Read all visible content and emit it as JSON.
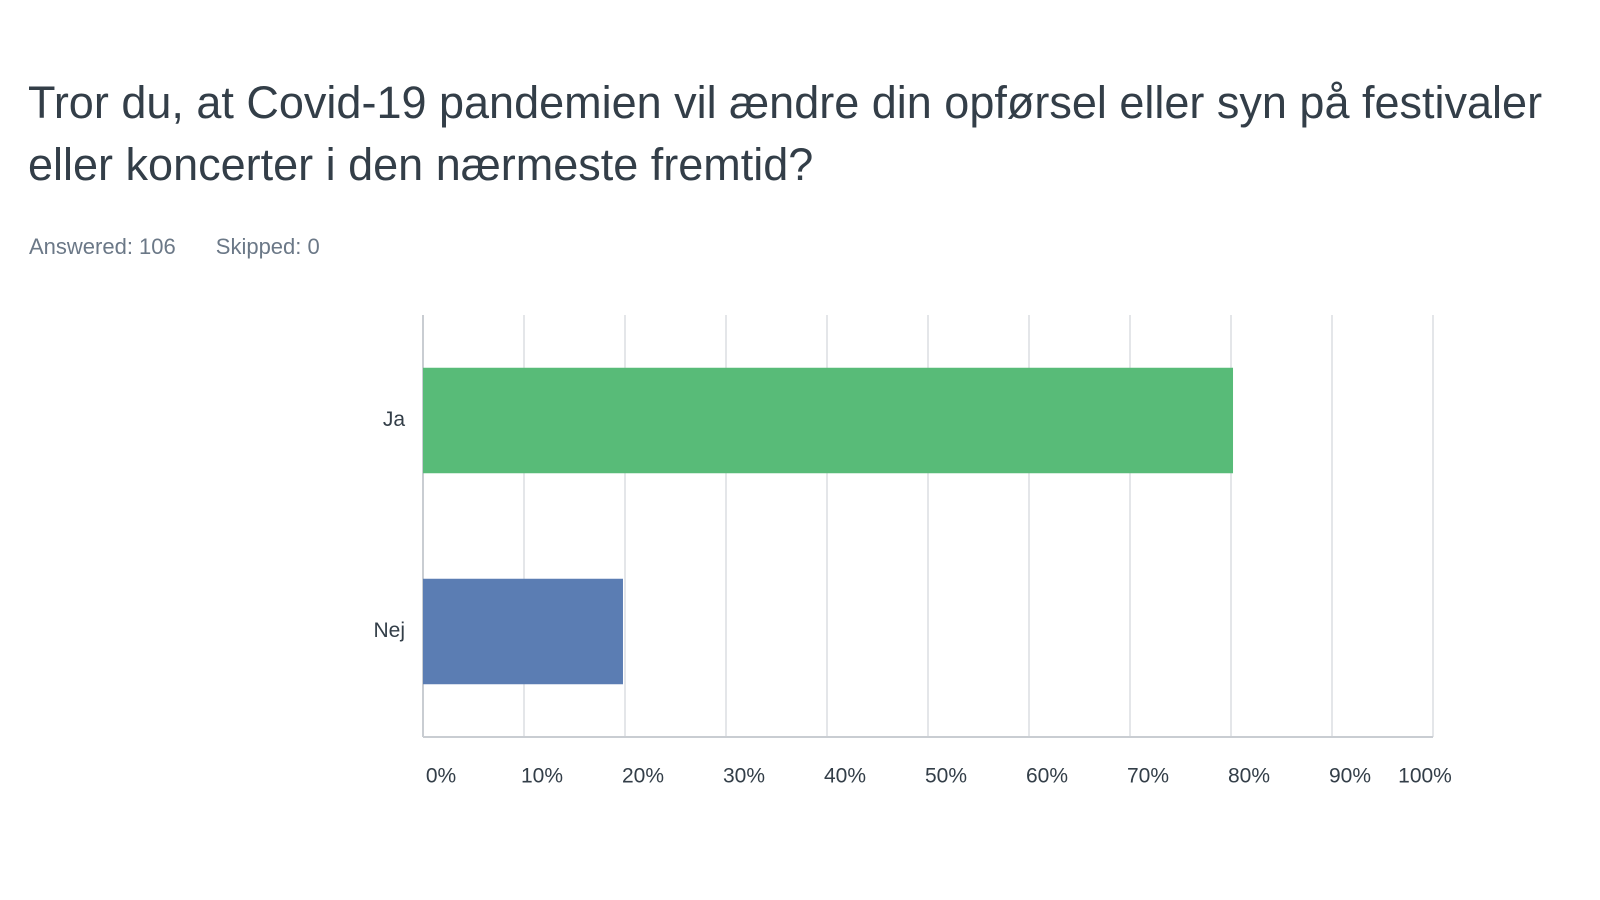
{
  "header": {
    "title": "Tror du, at Covid-19 pandemien vil ændre din opførsel eller syn på festivaler eller koncerter i den nærmeste fremtid?",
    "answered": "Answered: 106",
    "skipped": "Skipped: 0"
  },
  "chart_data": {
    "type": "hbar",
    "categories": [
      "Ja",
      "Nej"
    ],
    "values": [
      80.2,
      19.8
    ],
    "colors": [
      "#58bb78",
      "#5b7db3"
    ],
    "xlim": [
      0,
      100
    ],
    "xticks": [
      {
        "value": 0,
        "label": "0%"
      },
      {
        "value": 10,
        "label": "10%"
      },
      {
        "value": 20,
        "label": "20%"
      },
      {
        "value": 30,
        "label": "30%"
      },
      {
        "value": 40,
        "label": "40%"
      },
      {
        "value": 50,
        "label": "50%"
      },
      {
        "value": 60,
        "label": "60%"
      },
      {
        "value": 70,
        "label": "70%"
      },
      {
        "value": 80,
        "label": "80%"
      },
      {
        "value": 90,
        "label": "90%"
      },
      {
        "value": 100,
        "label": "100%"
      }
    ],
    "grid": true
  }
}
